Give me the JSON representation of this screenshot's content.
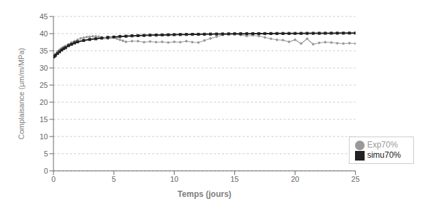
{
  "chart_data": {
    "type": "line",
    "xlabel": "Temps (jours)",
    "ylabel": "Complaisance (µm/m/MPa)",
    "xlim": [
      0,
      25
    ],
    "ylim": [
      0,
      45
    ],
    "xticks": [
      0,
      5,
      10,
      15,
      20,
      25
    ],
    "yticks": [
      0,
      5,
      10,
      15,
      20,
      25,
      30,
      35,
      40,
      45
    ],
    "grid": true,
    "legend": "lower right",
    "series": [
      {
        "name": "Exp70%",
        "color": "#999999",
        "marker": "circle",
        "x": [
          0.0,
          0.08,
          0.17,
          0.33,
          0.5,
          0.67,
          0.83,
          1.0,
          1.25,
          1.5,
          1.75,
          2.0,
          2.25,
          2.5,
          2.75,
          3.0,
          3.25,
          3.5,
          3.75,
          4.0,
          4.25,
          4.5,
          4.75,
          5.0,
          5.25,
          5.5,
          5.75,
          6.0,
          6.5,
          7.0,
          7.5,
          8.0,
          8.5,
          9.0,
          9.5,
          10.0,
          10.5,
          11.0,
          11.5,
          12.0,
          12.5,
          13.0,
          13.5,
          14.0,
          14.5,
          15.0,
          15.5,
          16.0,
          16.5,
          17.0,
          17.5,
          18.0,
          18.5,
          19.0,
          19.5,
          20.0,
          20.5,
          21.0,
          21.5,
          22.0,
          22.5,
          23.0,
          23.5,
          24.0,
          24.5,
          25.0
        ],
        "values": [
          33.2,
          33.5,
          34.0,
          34.8,
          35.3,
          35.7,
          36.1,
          36.4,
          36.9,
          37.4,
          37.8,
          38.2,
          38.6,
          38.8,
          39.0,
          39.1,
          39.2,
          39.2,
          39.1,
          38.9,
          38.7,
          38.5,
          38.8,
          38.9,
          38.5,
          38.2,
          37.9,
          37.6,
          37.8,
          37.8,
          37.5,
          37.7,
          37.5,
          37.6,
          37.4,
          37.6,
          37.5,
          37.8,
          37.5,
          37.4,
          38.0,
          38.6,
          39.1,
          39.6,
          39.9,
          40.0,
          39.6,
          39.3,
          39.5,
          39.3,
          38.9,
          38.5,
          38.2,
          38.1,
          37.6,
          38.2,
          37.1,
          38.5,
          36.9,
          37.3,
          37.5,
          37.4,
          37.2,
          37.1,
          37.2,
          37.1
        ]
      },
      {
        "name": "simu70%",
        "color": "#222222",
        "marker": "square",
        "x": [
          0.0,
          0.08,
          0.17,
          0.33,
          0.5,
          0.67,
          0.83,
          1.0,
          1.25,
          1.5,
          1.75,
          2.0,
          2.5,
          3.0,
          3.5,
          4.0,
          4.5,
          5.0,
          5.5,
          6.0,
          6.5,
          7.0,
          7.5,
          8.0,
          8.5,
          9.0,
          9.5,
          10.0,
          10.5,
          11.0,
          11.5,
          12.0,
          12.5,
          13.0,
          13.5,
          14.0,
          14.5,
          15.0,
          15.5,
          16.0,
          16.5,
          17.0,
          17.5,
          18.0,
          18.5,
          19.0,
          19.5,
          20.0,
          20.5,
          21.0,
          21.5,
          22.0,
          22.5,
          23.0,
          23.5,
          24.0,
          24.5,
          25.0
        ],
        "values": [
          33.2,
          33.4,
          33.7,
          34.2,
          34.7,
          35.2,
          35.6,
          35.9,
          36.5,
          36.9,
          37.3,
          37.6,
          38.0,
          38.3,
          38.5,
          38.7,
          38.9,
          39.0,
          39.15,
          39.25,
          39.35,
          39.42,
          39.48,
          39.54,
          39.58,
          39.62,
          39.66,
          39.7,
          39.73,
          39.76,
          39.79,
          39.81,
          39.83,
          39.86,
          39.88,
          39.9,
          39.92,
          39.94,
          39.96,
          39.97,
          39.98,
          40.0,
          40.01,
          40.02,
          40.03,
          40.04,
          40.05,
          40.06,
          40.07,
          40.08,
          40.09,
          40.1,
          40.11,
          40.12,
          40.13,
          40.14,
          40.15,
          40.16
        ]
      }
    ]
  }
}
